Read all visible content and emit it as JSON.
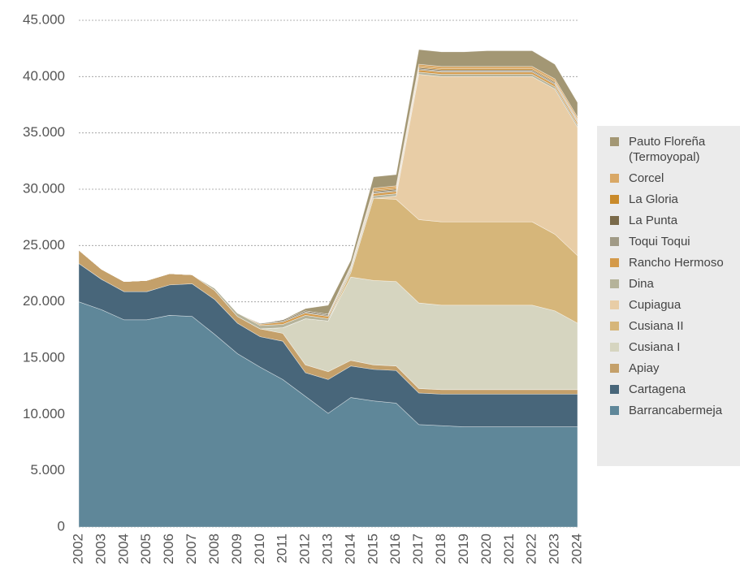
{
  "chart_data": {
    "type": "stacked_area",
    "categories": [
      "2002",
      "2003",
      "2004",
      "2005",
      "2006",
      "2007",
      "2008",
      "2009",
      "2010",
      "2011",
      "2012",
      "2013",
      "2014",
      "2015",
      "2016",
      "2017",
      "2018",
      "2019",
      "2020",
      "2021",
      "2022",
      "2023",
      "2024"
    ],
    "ylim": [
      0,
      45000
    ],
    "yticks": [
      0,
      {
        "value": 5000,
        "label": "5.000"
      },
      {
        "value": 10000,
        "label": "10.000"
      },
      {
        "value": 15000,
        "label": "15.000"
      },
      {
        "value": 20000,
        "label": "20.000"
      },
      {
        "value": 25000,
        "label": "25.000"
      },
      {
        "value": 30000,
        "label": "30.000"
      },
      {
        "value": 35000,
        "label": "35.000"
      },
      {
        "value": 40000,
        "label": "40.000"
      },
      {
        "value": 45000,
        "label": "45.000"
      }
    ],
    "grid": true,
    "series": [
      {
        "name": "Barrancabermeja",
        "color": "#5f8799",
        "values": [
          20000,
          19300,
          18400,
          18400,
          18800,
          18700,
          17100,
          15400,
          14200,
          13100,
          11600,
          10100,
          11500,
          11200,
          11000,
          9100,
          9000,
          8900,
          8900,
          8900,
          8900,
          8900,
          8900
        ]
      },
      {
        "name": "Cartagena",
        "color": "#48667a",
        "values": [
          3400,
          2700,
          2500,
          2500,
          2700,
          2900,
          3100,
          2700,
          2700,
          3400,
          2100,
          3000,
          2800,
          2800,
          2900,
          2800,
          2800,
          2900,
          2900,
          2900,
          2900,
          2900,
          2900
        ]
      },
      {
        "name": "Apiay",
        "color": "#c4a06a",
        "values": [
          1200,
          900,
          900,
          1000,
          1000,
          800,
          800,
          600,
          700,
          700,
          700,
          700,
          500,
          400,
          400,
          400,
          400,
          400,
          400,
          400,
          400,
          400,
          400
        ]
      },
      {
        "name": "Cusiana I",
        "color": "#d6d5c0",
        "values": [
          0,
          0,
          0,
          0,
          0,
          0,
          0,
          0,
          0,
          500,
          4100,
          4500,
          7400,
          7500,
          7500,
          7600,
          7500,
          7500,
          7500,
          7500,
          7500,
          7000,
          5900
        ]
      },
      {
        "name": "Cusiana II",
        "color": "#d6b67a",
        "values": [
          0,
          0,
          0,
          0,
          0,
          0,
          0,
          0,
          0,
          0,
          0,
          0,
          400,
          7300,
          7300,
          7400,
          7400,
          7400,
          7400,
          7400,
          7400,
          6800,
          6000
        ]
      },
      {
        "name": "Cupiagua",
        "color": "#e8cda6",
        "values": [
          0,
          0,
          0,
          0,
          0,
          0,
          0,
          0,
          0,
          0,
          0,
          0,
          0,
          0,
          300,
          12900,
          12900,
          12900,
          12900,
          12900,
          12900,
          12900,
          11400
        ]
      },
      {
        "name": "Dina",
        "color": "#b5b39a",
        "values": [
          0,
          0,
          0,
          0,
          0,
          0,
          200,
          300,
          300,
          300,
          300,
          200,
          200,
          200,
          200,
          200,
          200,
          200,
          200,
          200,
          200,
          200,
          200
        ]
      },
      {
        "name": "Rancho Hermoso",
        "color": "#d49a4a",
        "values": [
          0,
          0,
          0,
          0,
          0,
          0,
          0,
          0,
          100,
          200,
          200,
          200,
          100,
          200,
          200,
          200,
          200,
          200,
          200,
          200,
          200,
          200,
          200
        ]
      },
      {
        "name": "Toqui Toqui",
        "color": "#a09a86",
        "values": [
          0,
          0,
          0,
          0,
          0,
          0,
          0,
          0,
          100,
          100,
          100,
          100,
          100,
          100,
          100,
          100,
          100,
          100,
          100,
          100,
          100,
          100,
          100
        ]
      },
      {
        "name": "La Punta",
        "color": "#7a6a4a",
        "values": [
          0,
          0,
          0,
          0,
          0,
          0,
          0,
          0,
          0,
          100,
          100,
          100,
          100,
          100,
          100,
          100,
          100,
          100,
          100,
          100,
          100,
          100,
          100
        ]
      },
      {
        "name": "La Gloria",
        "color": "#c98a2a",
        "values": [
          0,
          0,
          0,
          0,
          0,
          0,
          0,
          0,
          0,
          0,
          0,
          0,
          100,
          100,
          100,
          100,
          100,
          100,
          100,
          100,
          100,
          100,
          100
        ]
      },
      {
        "name": "Corcel",
        "color": "#d9a866",
        "values": [
          0,
          0,
          0,
          0,
          0,
          0,
          0,
          0,
          0,
          0,
          0,
          0,
          0,
          200,
          200,
          200,
          200,
          200,
          200,
          200,
          200,
          200,
          200
        ]
      },
      {
        "name": "Pauto Floreña (Termoyopal)",
        "color": "#a39774",
        "values": [
          0,
          0,
          0,
          0,
          0,
          0,
          0,
          0,
          0,
          0,
          200,
          800,
          500,
          1000,
          1000,
          1300,
          1300,
          1300,
          1400,
          1400,
          1400,
          1300,
          1300
        ]
      }
    ]
  }
}
